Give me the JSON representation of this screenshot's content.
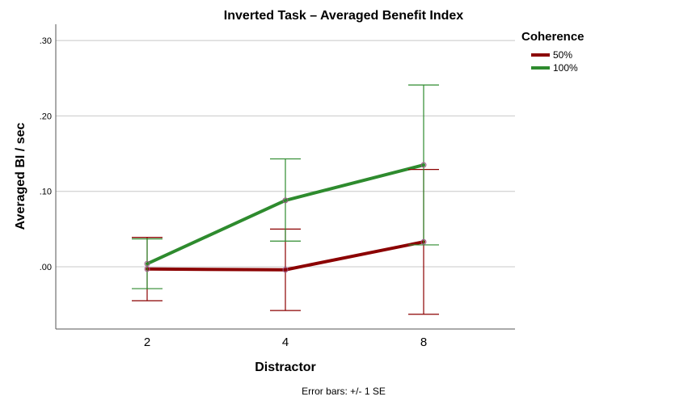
{
  "chart_data": {
    "type": "line",
    "title": "Inverted Task – Averaged Benefit Index",
    "xlabel": "Distractor",
    "ylabel": "Averaged BI / sec",
    "categories": [
      "2",
      "4",
      "8"
    ],
    "yticks": [
      ".00",
      ".10",
      ".20",
      ".30"
    ],
    "ytick_values": [
      0.0,
      0.1,
      0.2,
      0.3
    ],
    "ylim": [
      -0.083,
      0.3
    ],
    "grid": "horizontal",
    "legend": {
      "title": "Coherence",
      "placement": "top-right"
    },
    "series": [
      {
        "name": "50%",
        "color": "#8b0000",
        "values": [
          -0.003,
          -0.004,
          0.033
        ],
        "error_low": [
          -0.045,
          -0.058,
          -0.063
        ],
        "error_high": [
          0.039,
          0.05,
          0.129
        ]
      },
      {
        "name": "100%",
        "color": "#2e8b2e",
        "values": [
          0.004,
          0.088,
          0.135
        ],
        "error_low": [
          -0.029,
          0.034,
          0.029
        ],
        "error_high": [
          0.037,
          0.143,
          0.241
        ]
      }
    ],
    "footnote": "Error bars: +/- 1 SE"
  }
}
